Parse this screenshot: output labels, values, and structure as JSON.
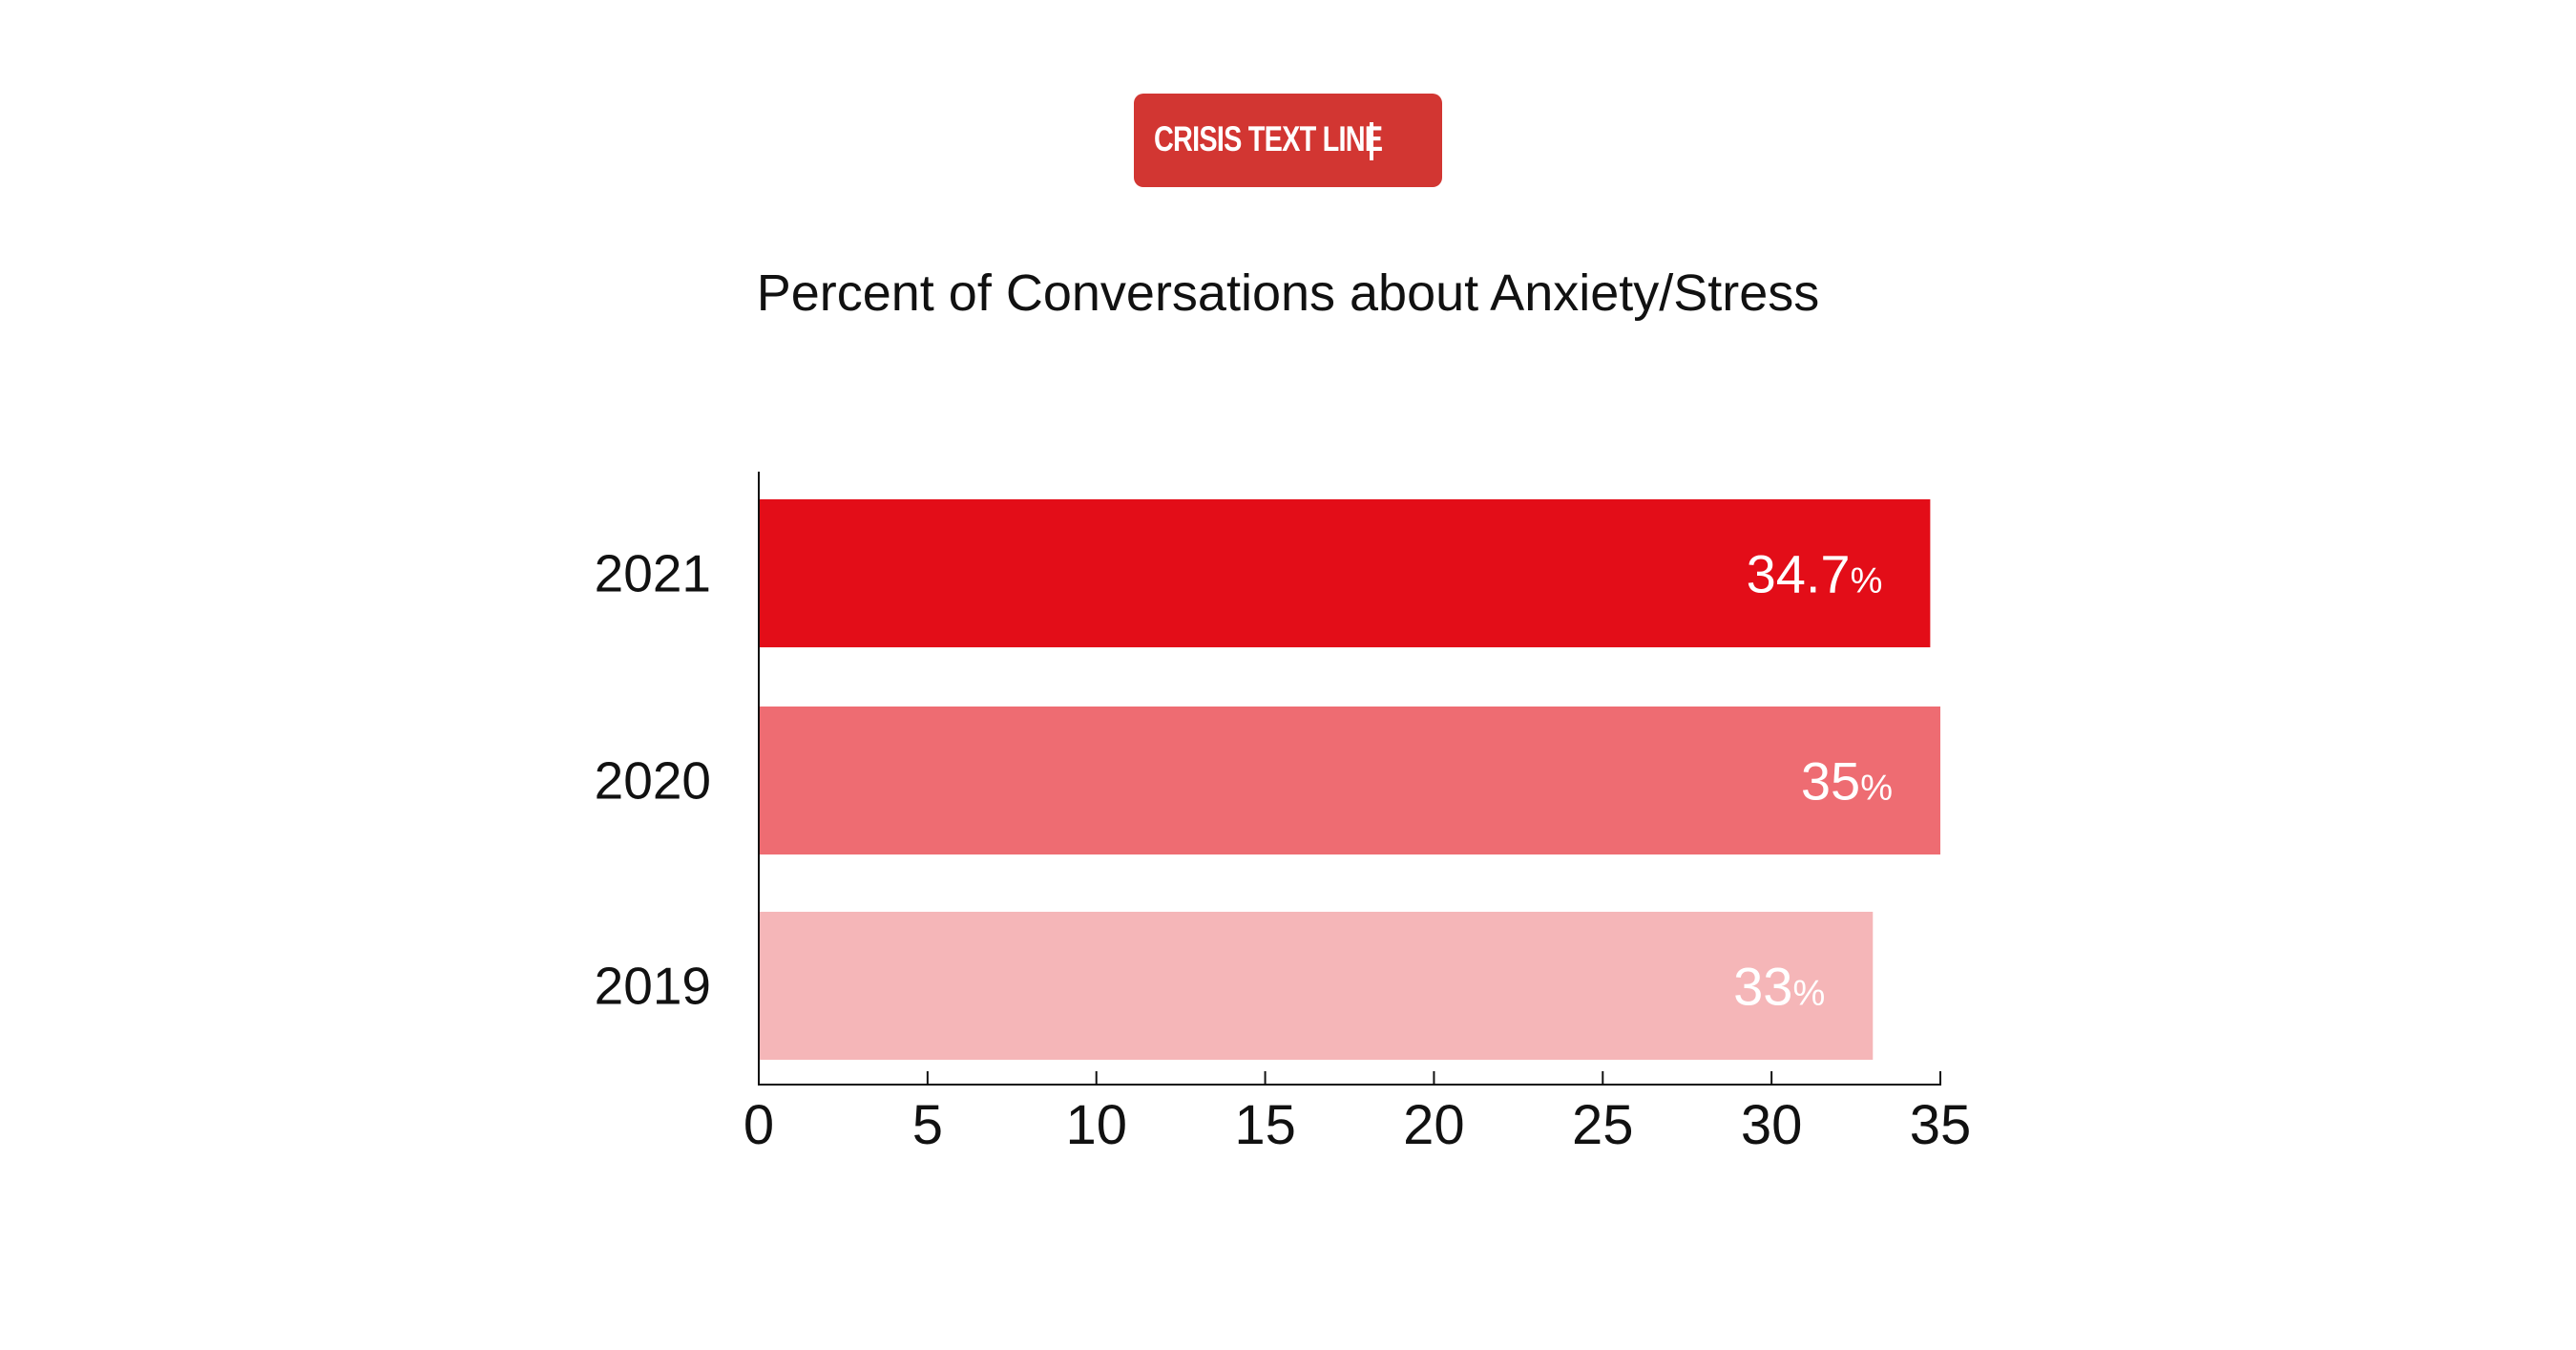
{
  "logo": {
    "text": "CRISIS TEXT LINE",
    "color": "#D23632"
  },
  "chart_data": {
    "type": "bar",
    "orientation": "horizontal",
    "title": "Percent of Conversations about Anxiety/Stress",
    "categories": [
      "2021",
      "2020",
      "2019"
    ],
    "values": [
      34.7,
      35,
      33
    ],
    "data_labels": [
      "34.7%",
      "35%",
      "33%"
    ],
    "colors": [
      "#E30D18",
      "#EE6C72",
      "#F5B6B8"
    ],
    "xlim": [
      0,
      35
    ],
    "xticks": [
      "0",
      "5",
      "10",
      "15",
      "20",
      "25",
      "30",
      "35"
    ],
    "xlabel": "",
    "ylabel": "",
    "grid": false
  }
}
